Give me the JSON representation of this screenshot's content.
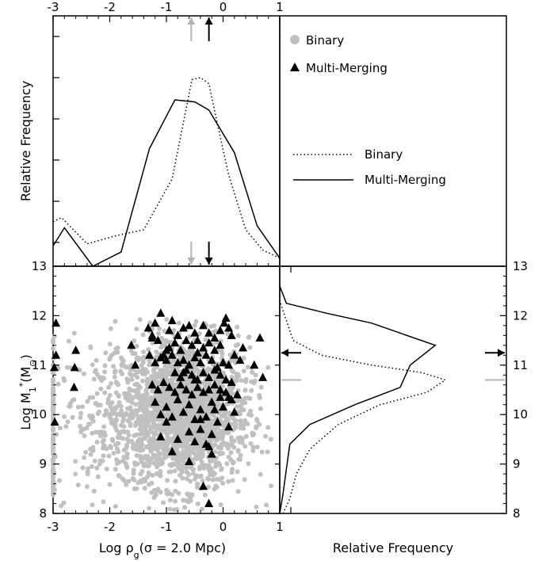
{
  "chart_data": [
    {
      "type": "line",
      "panel": "top-left",
      "xlabel": "",
      "ylabel": "Relative Frequency",
      "xlim": [
        -3,
        1
      ],
      "x_top_ticks": [
        "-3",
        "-2",
        "-1",
        "0",
        "1"
      ],
      "series": [
        {
          "name": "Binary",
          "style": "dotted",
          "color": "#000000",
          "x": [
            -3.0,
            -2.85,
            -2.4,
            -1.9,
            -1.4,
            -0.9,
            -0.55,
            -0.4,
            -0.25,
            -0.1,
            0.1,
            0.4,
            0.7,
            1.0
          ],
          "y": [
            0.22,
            0.24,
            0.11,
            0.15,
            0.18,
            0.43,
            0.92,
            0.93,
            0.9,
            0.7,
            0.45,
            0.18,
            0.08,
            0.04
          ]
        },
        {
          "name": "Multi-Merging",
          "style": "solid",
          "color": "#000000",
          "x": [
            -3.0,
            -2.8,
            -2.3,
            -1.8,
            -1.3,
            -0.85,
            -0.5,
            -0.25,
            0.2,
            0.6,
            1.0
          ],
          "y": [
            0.1,
            0.19,
            0.0,
            0.07,
            0.58,
            0.82,
            0.81,
            0.77,
            0.56,
            0.2,
            0.04
          ]
        }
      ],
      "markers": [
        {
          "series": "Binary",
          "x": -0.45,
          "color": "#b4b4b4"
        },
        {
          "series": "Multi-Merging",
          "x": -0.25,
          "color": "#000000"
        }
      ]
    },
    {
      "type": "scatter",
      "panel": "bottom-left",
      "xlabel": "Log ρ_g(σ = 2.0 Mpc)",
      "ylabel": "Log M_1^*(M_⊙)",
      "xlim": [
        -3,
        1
      ],
      "ylim": [
        8,
        13
      ],
      "x_ticks": [
        "-3",
        "-2",
        "-1",
        "0",
        "1"
      ],
      "y_ticks": [
        "8",
        "9",
        "10",
        "11",
        "12",
        "13"
      ],
      "series": [
        {
          "name": "Binary",
          "marker": "circle",
          "color": "#c0c0c0",
          "clouds": [
            {
              "x_mean": -0.65,
              "x_sd": 0.55,
              "y_mean": 10.05,
              "y_sd": 0.75,
              "n": 1700
            },
            {
              "x_mean": -1.5,
              "x_sd": 0.8,
              "y_mean": 9.9,
              "y_sd": 0.8,
              "n": 500
            },
            {
              "x_mean": -3.0,
              "x_sd": 0.0,
              "y_mean": 9.6,
              "y_sd": 0.9,
              "n": 90
            }
          ]
        },
        {
          "name": "Multi-Merging",
          "marker": "triangle",
          "color": "#000000",
          "x": [
            -2.95,
            -2.95,
            -2.98,
            -2.97,
            -2.6,
            -2.62,
            -2.63,
            -1.62,
            -1.55,
            -1.32,
            -1.25,
            -1.2,
            -1.1,
            -0.95,
            -0.9,
            -0.8,
            -0.7,
            -0.6,
            -0.5,
            -0.45,
            -0.35,
            -0.25,
            -0.15,
            -0.05,
            0.02,
            0.1,
            0.15,
            0.05,
            -0.05,
            -0.15,
            -0.25,
            -0.35,
            -0.45,
            -0.55,
            -0.65,
            -0.75,
            -0.85,
            -0.95,
            -1.05,
            -1.15,
            -1.25,
            -1.3,
            -1.2,
            -1.1,
            -1.0,
            -0.9,
            -0.8,
            -0.7,
            -0.6,
            -0.5,
            -0.4,
            -0.3,
            -0.2,
            -0.1,
            0.0,
            0.1,
            0.2,
            0.3,
            0.35,
            0.65,
            0.55,
            0.7,
            -0.85,
            -0.75,
            -0.65,
            -0.55,
            -0.45,
            -0.35,
            -0.25,
            -0.15,
            -0.05,
            0.05,
            0.15,
            -1.25,
            -1.15,
            -1.05,
            -0.95,
            -0.85,
            -0.75,
            -0.65,
            -0.55,
            -0.45,
            -0.35,
            -0.25,
            -0.15,
            -0.05,
            0.05,
            0.15,
            0.25,
            -1.2,
            -1.0,
            -0.8,
            -0.6,
            -0.4,
            -0.2,
            0.0,
            0.2,
            -1.1,
            -0.9,
            -0.7,
            -0.5,
            -0.3,
            -0.1,
            0.1,
            -1.0,
            -0.6,
            -0.2,
            -0.4,
            -1.1,
            -0.8,
            -0.5,
            -0.3,
            -0.25,
            -0.2,
            -0.6,
            -0.9,
            -0.4,
            -0.15,
            0.1,
            -0.05,
            -0.5,
            -0.7,
            -1.0,
            -0.35,
            -0.25
          ],
          "y": [
            11.85,
            11.2,
            10.95,
            9.85,
            11.3,
            10.95,
            10.55,
            11.4,
            11.0,
            11.75,
            11.55,
            11.85,
            12.05,
            11.7,
            11.9,
            11.6,
            11.75,
            11.8,
            11.65,
            11.5,
            11.8,
            11.65,
            11.55,
            11.7,
            11.85,
            11.75,
            11.6,
            11.95,
            11.4,
            11.3,
            11.45,
            11.35,
            11.25,
            11.4,
            11.5,
            11.3,
            11.45,
            11.35,
            11.2,
            11.5,
            11.6,
            11.2,
            11.05,
            11.15,
            11.1,
            11.2,
            11.05,
            11.1,
            11.0,
            11.15,
            11.05,
            11.2,
            11.1,
            10.95,
            11.05,
            11.0,
            11.2,
            11.1,
            11.35,
            11.55,
            11.0,
            10.75,
            10.85,
            10.75,
            10.9,
            10.8,
            10.7,
            10.85,
            10.75,
            10.9,
            10.8,
            10.7,
            10.65,
            10.6,
            10.5,
            10.65,
            10.55,
            10.45,
            10.6,
            10.5,
            10.4,
            10.55,
            10.45,
            10.5,
            10.6,
            10.35,
            10.45,
            10.3,
            10.4,
            10.25,
            10.15,
            10.3,
            10.2,
            10.1,
            10.25,
            10.15,
            10.05,
            10.0,
            9.95,
            10.05,
            9.9,
            9.95,
            9.85,
            9.75,
            9.85,
            9.65,
            9.6,
            9.7,
            9.55,
            9.5,
            9.45,
            9.4,
            9.35,
            9.2,
            9.05,
            9.25,
            9.9,
            10.1,
            10.35,
            10.5,
            10.7,
            10.85,
            11.3,
            8.55,
            8.2
          ]
        }
      ]
    },
    {
      "type": "line",
      "panel": "bottom-right",
      "orientation": "horizontal",
      "xlabel": "Relative Frequency",
      "ylabel": "",
      "ylim": [
        8,
        13
      ],
      "y_ticks": [
        "8",
        "9",
        "10",
        "11",
        "12",
        "13"
      ],
      "series": [
        {
          "name": "Binary",
          "style": "dotted",
          "color": "#000000",
          "y": [
            8.0,
            8.3,
            8.8,
            9.3,
            9.8,
            10.2,
            10.45,
            10.7,
            10.85,
            11.0,
            11.2,
            11.5,
            12.0,
            12.3
          ],
          "x": [
            0.02,
            0.06,
            0.1,
            0.18,
            0.35,
            0.6,
            0.88,
            0.99,
            0.85,
            0.55,
            0.25,
            0.08,
            0.03,
            0.0
          ]
        },
        {
          "name": "Multi-Merging",
          "style": "solid",
          "color": "#000000",
          "y": [
            8.0,
            8.4,
            8.9,
            9.4,
            9.8,
            10.2,
            10.55,
            11.0,
            11.4,
            11.85,
            12.05,
            12.25,
            12.6
          ],
          "x": [
            0.0,
            0.02,
            0.04,
            0.06,
            0.18,
            0.45,
            0.72,
            0.78,
            0.93,
            0.55,
            0.28,
            0.04,
            0.0
          ]
        }
      ],
      "markers": [
        {
          "series": "Binary",
          "y": 10.7,
          "color": "#b4b4b4"
        },
        {
          "series": "Multi-Merging",
          "y": 11.25,
          "color": "#000000"
        }
      ]
    }
  ],
  "legend_markers": {
    "items": [
      {
        "label": "Binary",
        "marker": "circle",
        "color": "#c0c0c0"
      },
      {
        "label": "Multi-Merging",
        "marker": "triangle",
        "color": "#000000"
      }
    ]
  },
  "legend_lines": {
    "items": [
      {
        "label": "Binary",
        "style": "dotted"
      },
      {
        "label": "Multi-Merging",
        "style": "solid"
      }
    ]
  }
}
